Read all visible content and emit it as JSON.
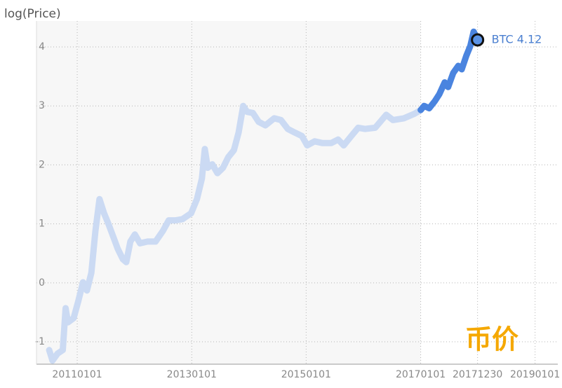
{
  "chart_data": {
    "type": "line",
    "y_label": "log(Price)",
    "xlim": [
      "20100416",
      "20190526"
    ],
    "xticks": [
      "20110101",
      "20130101",
      "20150101",
      "20170101",
      "20171230",
      "20190101"
    ],
    "ylim": [
      -1.38,
      4.44
    ],
    "yticks": [
      -1,
      0,
      1,
      2,
      3,
      4
    ],
    "grid": true,
    "shade_until": "20170101",
    "series": [
      {
        "color": "#cbdaf3",
        "x": [
          "20100706",
          "20100727",
          "20100829",
          "20101001",
          "20101019",
          "20101103",
          "20101209",
          "20110108",
          "20110207",
          "20110304",
          "20110401",
          "20110427",
          "20110523",
          "20110621",
          "20110719",
          "20110822",
          "20110916",
          "20111019",
          "20111110",
          "20111206",
          "20120104",
          "20120206",
          "20120325",
          "20120515",
          "20120701",
          "20120807",
          "20120920",
          "20121103",
          "20121228",
          "20130203",
          "20130307",
          "20130325",
          "20130413",
          "20130512",
          "20130614",
          "20130719",
          "20130822",
          "20130927",
          "20131027",
          "20131125",
          "20131220",
          "20140126",
          "20140304",
          "20140416",
          "20140611",
          "20140724",
          "20140906",
          "20141019",
          "20141205",
          "20150108",
          "20150224",
          "20150416",
          "20150610",
          "20150724",
          "20150829",
          "20151016",
          "20151129",
          "20160111",
          "20160317",
          "20160526",
          "20160708",
          "20160916",
          "20161124",
          "20170101"
        ],
        "values": [
          -1.14,
          -1.32,
          -1.2,
          -1.14,
          -0.43,
          -0.67,
          -0.6,
          -0.31,
          0.01,
          -0.13,
          0.17,
          0.88,
          1.42,
          1.18,
          1.0,
          0.76,
          0.58,
          0.4,
          0.35,
          0.7,
          0.82,
          0.67,
          0.7,
          0.7,
          0.88,
          1.06,
          1.06,
          1.08,
          1.18,
          1.42,
          1.77,
          2.27,
          1.95,
          2.01,
          1.86,
          1.95,
          2.13,
          2.25,
          2.55,
          3.0,
          2.9,
          2.88,
          2.73,
          2.67,
          2.79,
          2.76,
          2.61,
          2.55,
          2.49,
          2.33,
          2.4,
          2.37,
          2.37,
          2.43,
          2.33,
          2.49,
          2.63,
          2.61,
          2.63,
          2.85,
          2.76,
          2.79,
          2.87,
          2.93
        ]
      },
      {
        "color": "#4a84df",
        "x": [
          "20170101",
          "20170123",
          "20170224",
          "20170401",
          "20170430",
          "20170603",
          "20170625",
          "20170728",
          "20170829",
          "20170920",
          "20171019",
          "20171114",
          "20171205",
          "20171230"
        ],
        "values": [
          2.93,
          3.0,
          2.96,
          3.08,
          3.2,
          3.4,
          3.32,
          3.56,
          3.68,
          3.62,
          3.85,
          4.02,
          4.26,
          4.12
        ]
      }
    ],
    "annotation": {
      "text": "BTC 4.12",
      "x": "20171230",
      "y": 4.12,
      "color": "#4a7fd0"
    },
    "watermark": {
      "text": "币价",
      "color": "#f5a800"
    }
  }
}
